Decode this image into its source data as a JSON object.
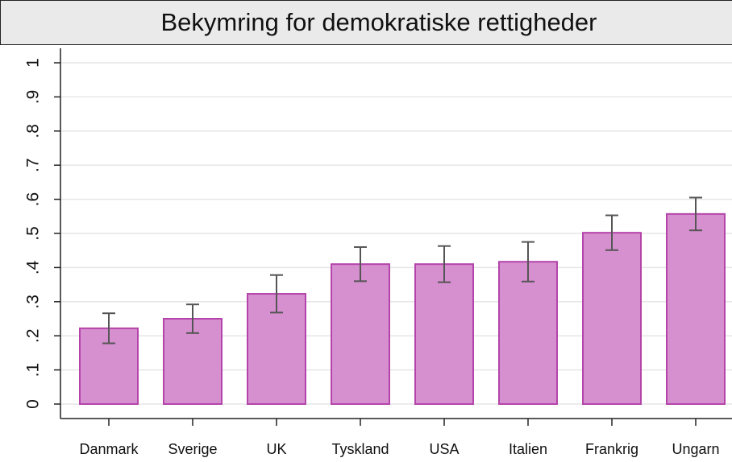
{
  "chart_data": {
    "type": "bar",
    "title": "Bekymring for demokratiske rettigheder",
    "categories": [
      "Danmark",
      "Sverige",
      "UK",
      "Tyskland",
      "USA",
      "Italien",
      "Frankrig",
      "Ungarn"
    ],
    "values": [
      0.222,
      0.25,
      0.323,
      0.41,
      0.41,
      0.417,
      0.502,
      0.557
    ],
    "errors": [
      0.044,
      0.042,
      0.055,
      0.05,
      0.053,
      0.058,
      0.051,
      0.048
    ],
    "color": "#d68fcf",
    "ylim": [
      0,
      1
    ],
    "yticks": [
      0,
      {
        "value": 0.1,
        "label": ".1"
      },
      {
        "value": 0.2,
        "label": ".2"
      },
      {
        "value": 0.3,
        "label": ".3"
      },
      {
        "value": 0.4,
        "label": ".4"
      },
      {
        "value": 0.5,
        "label": ".5"
      },
      {
        "value": 0.6,
        "label": ".6"
      },
      {
        "value": 0.7,
        "label": ".7"
      },
      {
        "value": 0.8,
        "label": ".8"
      },
      {
        "value": 0.9,
        "label": ".9"
      },
      1
    ],
    "grid": true
  }
}
